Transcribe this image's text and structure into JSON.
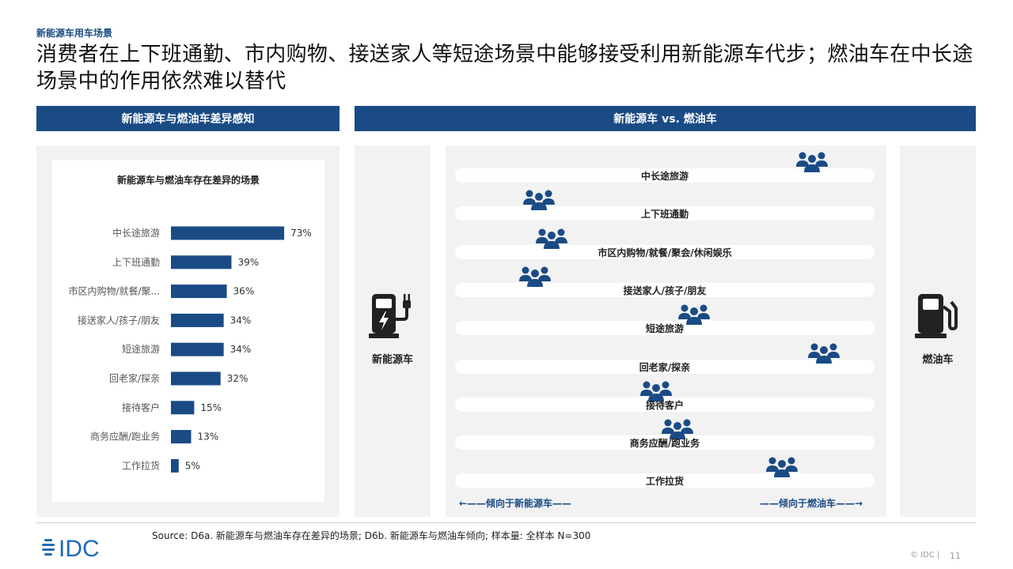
{
  "header": {
    "section_label": "新能源车用车场景",
    "headline": "消费者在上下班通勤、市内购物、接送家人等短途场景中能够接受利用新能源车代步；燃油车在中长途场景中的作用依然难以替代"
  },
  "left_section": {
    "header": "新能源车与燃油车差异感知"
  },
  "right_section": {
    "header": "新能源车 vs. 燃油车",
    "ev_label": "新能源车",
    "gas_label": "燃油车",
    "scenarios": [
      {
        "label": "中长途旅游",
        "position": 0.85
      },
      {
        "label": "上下班通勤",
        "position": 0.2
      },
      {
        "label": "市区内购物/就餐/聚会/休闲娱乐",
        "position": 0.23
      },
      {
        "label": "接送家人/孩子/朋友",
        "position": 0.19
      },
      {
        "label": "短途旅游",
        "position": 0.57
      },
      {
        "label": "回老家/探亲",
        "position": 0.88
      },
      {
        "label": "接待客户",
        "position": 0.48
      },
      {
        "label": "商务应酬/跑业务",
        "position": 0.53
      },
      {
        "label": "工作拉货",
        "position": 0.78
      }
    ],
    "left_arrow": "←——倾向于新能源车——",
    "right_arrow": "——倾向于燃油车——→"
  },
  "chart_data": {
    "type": "bar",
    "orientation": "horizontal",
    "title": "新能源车与燃油车存在差异的场景",
    "categories": [
      "中长途旅游",
      "上下班通勤",
      "市区内购物/就餐/聚...",
      "接送家人/孩子/朋友",
      "短途旅游",
      "回老家/探亲",
      "接待客户",
      "商务应酬/跑业务",
      "工作拉货"
    ],
    "values": [
      73,
      39,
      36,
      34,
      34,
      32,
      15,
      13,
      5
    ],
    "value_labels": [
      "73%",
      "39%",
      "36%",
      "34%",
      "34%",
      "32%",
      "15%",
      "13%",
      "5%"
    ],
    "xlim": [
      0,
      100
    ],
    "grid": false,
    "bar_color": "#1a4b85"
  },
  "footer": {
    "source": "Source: D6a. 新能源车与燃油车存在差异的场景; D6b. 新能源车与燃油车倾向; 样本量: 全样本 N=300",
    "logo_text": "IDC",
    "copyright": "© IDC |",
    "page": "11"
  },
  "colors": {
    "brand": "#1a4b85",
    "panel": "#f2f2f2"
  },
  "icons": {
    "ev": "ev-charger-icon",
    "gas": "fuel-pump-icon",
    "people": "people-group-icon"
  }
}
